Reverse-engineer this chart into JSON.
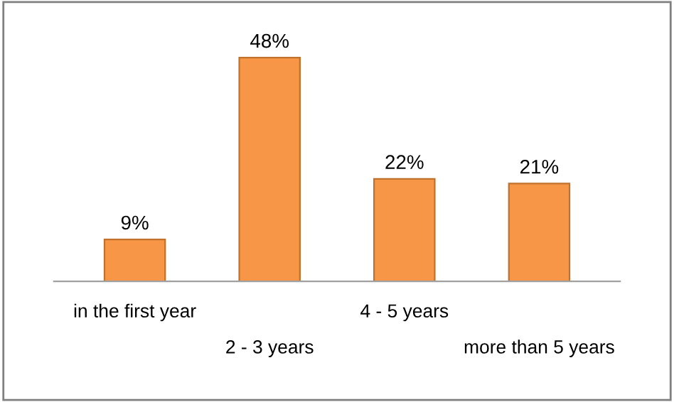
{
  "chart_data": {
    "type": "bar",
    "categories": [
      "in the first year",
      "2 - 3 years",
      "4 - 5 years",
      "more than 5 years"
    ],
    "values": [
      9,
      48,
      22,
      21
    ],
    "value_labels": [
      "9%",
      "48%",
      "22%",
      "21%"
    ],
    "color": "#f79646",
    "grid": false,
    "legend": false,
    "tick_labels": "x"
  }
}
